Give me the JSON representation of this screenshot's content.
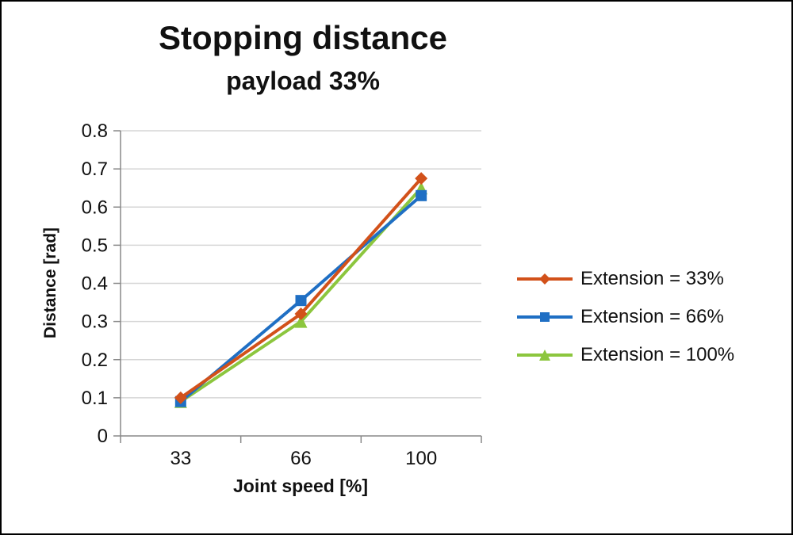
{
  "chart_data": {
    "type": "line",
    "title": "Stopping distance",
    "subtitle": "payload 33%",
    "xlabel": "Joint speed [%]",
    "ylabel": "Distance [rad]",
    "categories": [
      "33",
      "66",
      "100"
    ],
    "ylim": [
      0,
      0.8
    ],
    "ytick_step": 0.1,
    "grid": true,
    "legend_position": "right",
    "series": [
      {
        "name": "Extension = 33%",
        "marker": "diamond",
        "color": "#d2511a",
        "values": [
          0.1,
          0.32,
          0.675
        ]
      },
      {
        "name": "Extension = 66%",
        "marker": "square",
        "color": "#1f6fc4",
        "values": [
          0.09,
          0.355,
          0.63
        ]
      },
      {
        "name": "Extension = 100%",
        "marker": "triangle",
        "color": "#8cc63e",
        "values": [
          0.09,
          0.3,
          0.65
        ]
      }
    ],
    "colors": {
      "gridline": "#d6d6d6",
      "axis": "#898989",
      "text": "#111111"
    }
  }
}
